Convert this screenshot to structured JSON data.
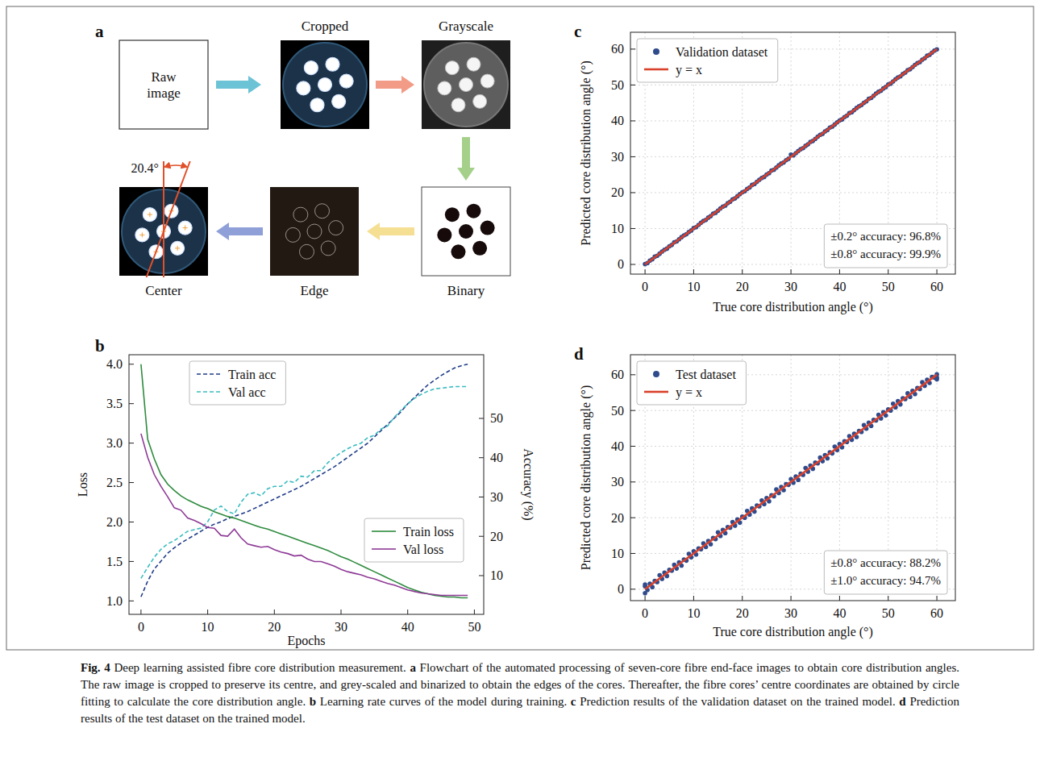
{
  "diagram": {
    "label": "a",
    "nodes": [
      {
        "label": "Raw image"
      },
      {
        "label": "Cropped"
      },
      {
        "label": "Grayscale"
      },
      {
        "label": "Binary"
      },
      {
        "label": "Edge"
      },
      {
        "label": "Center"
      }
    ],
    "angle_label": "20.4°"
  },
  "chart_data": [
    {
      "type": "line",
      "label": "b",
      "xlabel": "Epochs",
      "ylabel": "Loss",
      "y2label": "Accuracy (%)",
      "x": [
        0,
        1,
        2,
        3,
        4,
        5,
        6,
        7,
        8,
        9,
        10,
        11,
        12,
        13,
        14,
        15,
        16,
        17,
        18,
        19,
        20,
        21,
        22,
        23,
        24,
        25,
        26,
        27,
        28,
        29,
        30,
        31,
        32,
        33,
        34,
        35,
        36,
        37,
        38,
        39,
        40,
        41,
        42,
        43,
        44,
        45,
        46,
        47,
        48,
        49
      ],
      "xlim": [
        -1.8,
        51.4
      ],
      "xticks": [
        0,
        10,
        20,
        30,
        40,
        50
      ],
      "ylim": [
        0.83,
        4.12
      ],
      "yticks": [
        {
          "value": 1,
          "label": "1.0"
        },
        1.5,
        {
          "value": 2,
          "label": "2.0"
        },
        2.5,
        {
          "value": 3,
          "label": "3.0"
        },
        3.5,
        {
          "value": 4,
          "label": "4.0"
        }
      ],
      "y2lim": [
        0.15,
        66.2
      ],
      "y2ticks": [
        10,
        20,
        30,
        40,
        50
      ],
      "legend": "upper left",
      "series": [
        {
          "name": "Train acc",
          "axis": "y2",
          "color": "#1f3c88",
          "line_style": "dashed",
          "values": [
            4.6,
            8.6,
            11.7,
            13.7,
            15.7,
            17.1,
            18.3,
            19.3,
            20.3,
            21.3,
            22.3,
            23.1,
            23.7,
            24.5,
            25.1,
            25.7,
            26.3,
            27.1,
            27.9,
            28.7,
            29.5,
            30.3,
            31.1,
            31.9,
            32.7,
            33.7,
            34.7,
            35.7,
            36.7,
            37.7,
            38.9,
            40.1,
            41.3,
            42.5,
            43.7,
            45.3,
            46.9,
            48.5,
            50.1,
            51.7,
            53.7,
            55.3,
            56.9,
            58.5,
            59.7,
            60.9,
            61.9,
            62.8,
            63.4,
            63.8
          ]
        },
        {
          "name": "Val acc",
          "axis": "y2",
          "color": "#3bbcc0",
          "line_style": "dashed",
          "values": [
            9.3,
            12.1,
            14.7,
            16.7,
            18.1,
            18.9,
            20.1,
            21.3,
            21.7,
            22.1,
            23.7,
            26.7,
            27.7,
            26.3,
            25.7,
            28.7,
            30.7,
            31.1,
            30.3,
            32.1,
            32.7,
            32.7,
            34.1,
            33.7,
            35.3,
            35.1,
            36.7,
            36.7,
            38.7,
            40.1,
            41.3,
            42.3,
            43.1,
            43.7,
            45.1,
            45.7,
            47.3,
            48.1,
            50.3,
            52.1,
            53.7,
            55.1,
            56.1,
            56.9,
            57.5,
            57.7,
            57.9,
            58.1,
            58.1,
            58.1
          ]
        },
        {
          "name": "Train loss",
          "color": "#2e8b3e",
          "line_style": "solid",
          "values": [
            4.0,
            3.05,
            2.8,
            2.6,
            2.48,
            2.4,
            2.33,
            2.28,
            2.24,
            2.2,
            2.17,
            2.13,
            2.1,
            2.07,
            2.05,
            2.02,
            1.99,
            1.96,
            1.93,
            1.91,
            1.88,
            1.85,
            1.82,
            1.79,
            1.76,
            1.73,
            1.7,
            1.67,
            1.64,
            1.6,
            1.56,
            1.53,
            1.49,
            1.45,
            1.41,
            1.37,
            1.33,
            1.29,
            1.25,
            1.21,
            1.17,
            1.14,
            1.11,
            1.09,
            1.07,
            1.06,
            1.05,
            1.05,
            1.04,
            1.04
          ]
        },
        {
          "name": "Val loss",
          "color": "#8e3a96",
          "line_style": "solid",
          "values": [
            3.12,
            2.82,
            2.6,
            2.45,
            2.32,
            2.18,
            2.15,
            2.05,
            2.02,
            1.98,
            1.93,
            1.92,
            1.83,
            1.82,
            1.91,
            1.8,
            1.72,
            1.7,
            1.68,
            1.69,
            1.65,
            1.62,
            1.6,
            1.57,
            1.58,
            1.53,
            1.5,
            1.5,
            1.47,
            1.44,
            1.4,
            1.37,
            1.35,
            1.33,
            1.3,
            1.28,
            1.25,
            1.22,
            1.2,
            1.17,
            1.14,
            1.12,
            1.1,
            1.09,
            1.08,
            1.07,
            1.07,
            1.07,
            1.07,
            1.07
          ]
        }
      ]
    },
    {
      "type": "scatter",
      "label": "c",
      "xlabel": "True core distribution angle (°)",
      "ylabel": "Predicted core distribution angle (°)",
      "xlim": [
        -3,
        63.8
      ],
      "xticks": [
        0,
        10,
        20,
        30,
        40,
        50,
        60
      ],
      "ylim": [
        -2.7,
        64.7
      ],
      "yticks": [
        0,
        10,
        20,
        30,
        40,
        50,
        60
      ],
      "grid": true,
      "legend": "upper left",
      "annotations": [
        "±0.2° accuracy: 96.8%",
        "±0.8° accuracy: 99.9%"
      ],
      "series": [
        {
          "name": "Validation dataset",
          "type": "scatter",
          "marker": "circle",
          "color": "#2f4b8c",
          "x": [
            0,
            0.5,
            1,
            1.5,
            2,
            2.5,
            3,
            3.5,
            4,
            4.5,
            5,
            5.5,
            6,
            6.5,
            7,
            7.5,
            8,
            8.5,
            9,
            9.5,
            10,
            10.5,
            11,
            11.5,
            12,
            12.5,
            13,
            13.5,
            14,
            14.5,
            15,
            15.5,
            16,
            16.5,
            17,
            17.5,
            18,
            18.5,
            19,
            19.5,
            20,
            20.5,
            21,
            21.5,
            22,
            22.5,
            23,
            23.5,
            24,
            24.5,
            25,
            25.5,
            26,
            26.5,
            27,
            27.5,
            28,
            28.5,
            29,
            29.5,
            30,
            30.5,
            31,
            31.5,
            32,
            32.5,
            33,
            33.5,
            34,
            34.5,
            35,
            35.5,
            36,
            36.5,
            37,
            37.5,
            38,
            38.5,
            39,
            39.5,
            40,
            40.5,
            41,
            41.5,
            42,
            42.5,
            43,
            43.5,
            44,
            44.5,
            45,
            45.5,
            46,
            46.5,
            47,
            47.5,
            48,
            48.5,
            49,
            49.5,
            50,
            50.5,
            51,
            51.5,
            52,
            52.5,
            53,
            53.5,
            54,
            54.5,
            55,
            55.5,
            56,
            56.5,
            57,
            57.5,
            58,
            58.5,
            59,
            59.5,
            60
          ],
          "values": [
            0.1,
            0.4,
            1.05,
            1.45,
            2.15,
            2.4,
            3,
            3.6,
            4.1,
            4.4,
            5.05,
            5.45,
            6.15,
            6.4,
            7,
            7.6,
            8.1,
            8.4,
            9.05,
            9.45,
            10.15,
            10.4,
            11,
            11.6,
            12.1,
            12.4,
            13.05,
            13.45,
            14.15,
            14.4,
            15,
            15.6,
            16.1,
            16.4,
            17.05,
            17.45,
            18.15,
            18.4,
            19,
            19.6,
            20.1,
            20.4,
            21.05,
            21.45,
            22.15,
            22.4,
            23,
            23.6,
            24.1,
            24.4,
            25.05,
            25.45,
            26.15,
            26.4,
            27,
            27.6,
            28.1,
            28.4,
            29.05,
            29.45,
            30.6,
            30.4,
            31,
            31.6,
            32.1,
            32.4,
            33.05,
            33.45,
            34.15,
            34.4,
            35,
            35.6,
            36.1,
            36.4,
            37.05,
            37.45,
            38.15,
            38.4,
            39,
            39.6,
            40.1,
            40.4,
            41.05,
            41.45,
            42.15,
            42.4,
            43,
            43.6,
            44.1,
            44.4,
            45.05,
            45.45,
            46.15,
            46.4,
            47,
            47.6,
            48.1,
            48.4,
            49.05,
            49.45,
            50.15,
            50.4,
            51,
            51.6,
            52.1,
            52.4,
            53.05,
            53.45,
            54.15,
            54.4,
            55,
            55.6,
            56.1,
            56.4,
            57.05,
            57.45,
            58.15,
            58.4,
            59,
            59.6,
            59.9
          ]
        },
        {
          "name": "y = x",
          "type": "line",
          "line_style": "solid",
          "color": "#d9412b",
          "x": [
            0,
            60
          ],
          "values": [
            0,
            60
          ]
        }
      ]
    },
    {
      "type": "scatter",
      "label": "d",
      "xlabel": "True core distribution angle (°)",
      "ylabel": "Predicted core distribution angle (°)",
      "xlim": [
        -3,
        63.8
      ],
      "xticks": [
        0,
        10,
        20,
        30,
        40,
        50,
        60
      ],
      "ylim": [
        -3.2,
        65.6
      ],
      "yticks": [
        0,
        10,
        20,
        30,
        40,
        50,
        60
      ],
      "grid": true,
      "legend": "upper left",
      "annotations": [
        "±0.8° accuracy: 88.2%",
        "±1.0° accuracy: 94.7%"
      ],
      "series": [
        {
          "name": "Test dataset",
          "type": "scatter",
          "marker": "circle",
          "color": "#2f4b8c",
          "x": [
            0,
            0.5,
            1,
            1.5,
            2,
            2.5,
            3,
            3.5,
            4,
            4.5,
            5,
            5.5,
            6,
            6.5,
            7,
            7.5,
            8,
            8.5,
            9,
            9.5,
            10,
            10.5,
            11,
            11.5,
            12,
            12.5,
            13,
            13.5,
            14,
            14.5,
            15,
            15.5,
            16,
            16.5,
            17,
            17.5,
            18,
            18.5,
            19,
            19.5,
            20,
            20.5,
            21,
            21.5,
            22,
            22.5,
            23,
            23.5,
            24,
            24.5,
            25,
            25.5,
            26,
            26.5,
            27,
            27.5,
            28,
            28.5,
            29,
            29.5,
            30,
            30.5,
            31,
            31.5,
            32,
            32.5,
            33,
            33.5,
            34,
            34.5,
            35,
            35.5,
            36,
            36.5,
            37,
            37.5,
            38,
            38.5,
            39,
            39.5,
            40,
            40.5,
            41,
            41.5,
            42,
            42.5,
            43,
            43.5,
            44,
            44.5,
            45,
            45.5,
            46,
            46.5,
            47,
            47.5,
            48,
            48.5,
            49,
            49.5,
            50,
            50.5,
            51,
            51.5,
            52,
            52.5,
            53,
            53.5,
            54,
            54.5,
            55,
            55.5,
            56,
            56.5,
            57,
            57.5,
            58,
            58.5,
            59,
            59.5,
            60,
            0,
            0,
            60,
            60
          ],
          "values": [
            0.8,
            -0.2,
            1.5,
            0.6,
            2.3,
            2,
            3.9,
            2.9,
            4.6,
            3.7,
            5.4,
            5.2,
            6.8,
            5.8,
            7.5,
            6.6,
            8.3,
            8,
            9.9,
            8.9,
            10.6,
            9.7,
            11.4,
            11.2,
            12.8,
            11.8,
            13.5,
            12.6,
            14.3,
            14,
            15.9,
            14.9,
            16.6,
            15.7,
            17.4,
            17.2,
            18.8,
            17.8,
            19.5,
            18.6,
            20.3,
            20,
            21.9,
            20.9,
            22.6,
            21.7,
            23.4,
            23.2,
            24.8,
            23.8,
            25.5,
            24.6,
            26.3,
            26,
            27.9,
            26.9,
            28.6,
            27.7,
            29.4,
            29.2,
            30.8,
            29.8,
            31.5,
            30.6,
            32.3,
            32,
            33.9,
            32.9,
            34.6,
            33.7,
            35.4,
            35.2,
            36.8,
            35.8,
            37.5,
            36.6,
            38.3,
            38,
            39.9,
            38.9,
            40.6,
            39.7,
            41.4,
            41.2,
            42.8,
            41.8,
            43.5,
            42.6,
            44.3,
            44,
            45.9,
            44.9,
            46.6,
            45.7,
            47.4,
            47.2,
            48.8,
            47.8,
            49.5,
            48.6,
            50.3,
            50,
            51.9,
            50.9,
            52.6,
            51.7,
            53.4,
            53.2,
            54.8,
            53.8,
            55.5,
            54.6,
            56.3,
            56,
            57.9,
            56.9,
            58.6,
            57.7,
            59.4,
            59.2,
            59.2,
            -1.1,
            1.3,
            60.1,
            58.7
          ]
        },
        {
          "name": "y = x",
          "type": "line",
          "line_style": "solid",
          "color": "#d9412b",
          "x": [
            0,
            60
          ],
          "values": [
            0,
            60
          ]
        }
      ]
    }
  ],
  "caption": {
    "label": "Fig. 4",
    "title": "Deep learning assisted fibre core distribution measurement.",
    "parts": [
      {
        "label": "a",
        "text": "Flowchart of the automated processing of seven-core fibre end-face images to obtain core distribution angles. The raw image is cropped to preserve its centre, and grey-scaled and binarized to obtain the edges of the cores. Thereafter, the fibre cores’ centre coordinates are obtained by circle fitting to calculate the core distribution angle."
      },
      {
        "label": "b",
        "text": "Learning rate curves of the model during training."
      },
      {
        "label": "c",
        "text": "Prediction results of the validation dataset on the trained model."
      },
      {
        "label": "d",
        "text": "Prediction results of the test dataset on the trained model."
      }
    ]
  }
}
